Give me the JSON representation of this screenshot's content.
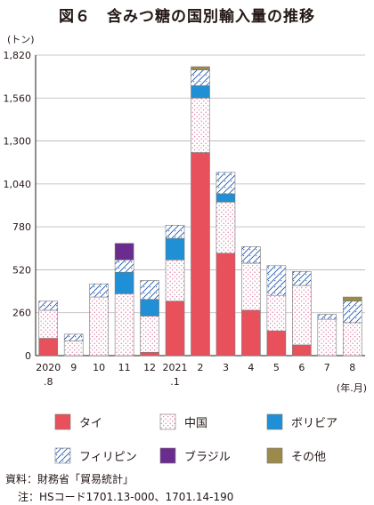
{
  "header": {
    "title": "図６　含みつ糖の国別輸入量の推移"
  },
  "notes": {
    "source": "資料：財務省「貿易統計」",
    "footnote": "注：HSコード1701.13-000、1701.14-190"
  },
  "colors": {
    "タイ": "#e8505b",
    "中国": "#ffffff",
    "ボリビア": "#1f8fd6",
    "フィリピン": "#ffffff",
    "ブラジル": "#6b2c8f",
    "その他": "#9b8a4a"
  },
  "chart_data": {
    "type": "bar",
    "stacked": true,
    "title": "図６　含みつ糖の国別輸入量の推移",
    "ylabel": "(トン)",
    "xlabel": "(年.月)",
    "ylim": [
      0,
      1820
    ],
    "yticks": [
      0,
      260,
      520,
      780,
      1040,
      1300,
      1560,
      1820
    ],
    "ytick_labels": [
      "0",
      "260",
      "520",
      "780",
      "1,040",
      "1,300",
      "1,560",
      "1,820"
    ],
    "grid": true,
    "legend_position": "bottom",
    "categories": [
      "2020\n.8",
      "9",
      "10",
      "11",
      "12",
      "2021\n.1",
      "2",
      "3",
      "4",
      "5",
      "6",
      "7",
      "8"
    ],
    "series": [
      {
        "name": "タイ",
        "values": [
          105,
          0,
          0,
          0,
          20,
          330,
          1230,
          620,
          275,
          150,
          65,
          0,
          0
        ]
      },
      {
        "name": "中国",
        "values": [
          170,
          90,
          355,
          375,
          220,
          250,
          330,
          310,
          285,
          215,
          360,
          220,
          200
        ]
      },
      {
        "name": "ボリビア",
        "values": [
          0,
          0,
          0,
          130,
          100,
          130,
          75,
          50,
          0,
          0,
          0,
          0,
          0
        ]
      },
      {
        "name": "フィリピン",
        "values": [
          55,
          40,
          80,
          75,
          115,
          80,
          95,
          130,
          100,
          180,
          85,
          30,
          130
        ]
      },
      {
        "name": "ブラジル",
        "values": [
          0,
          0,
          0,
          100,
          0,
          0,
          0,
          0,
          0,
          0,
          0,
          0,
          0
        ]
      },
      {
        "name": "その他",
        "values": [
          0,
          0,
          0,
          0,
          0,
          0,
          20,
          0,
          0,
          0,
          0,
          0,
          25
        ]
      }
    ]
  }
}
